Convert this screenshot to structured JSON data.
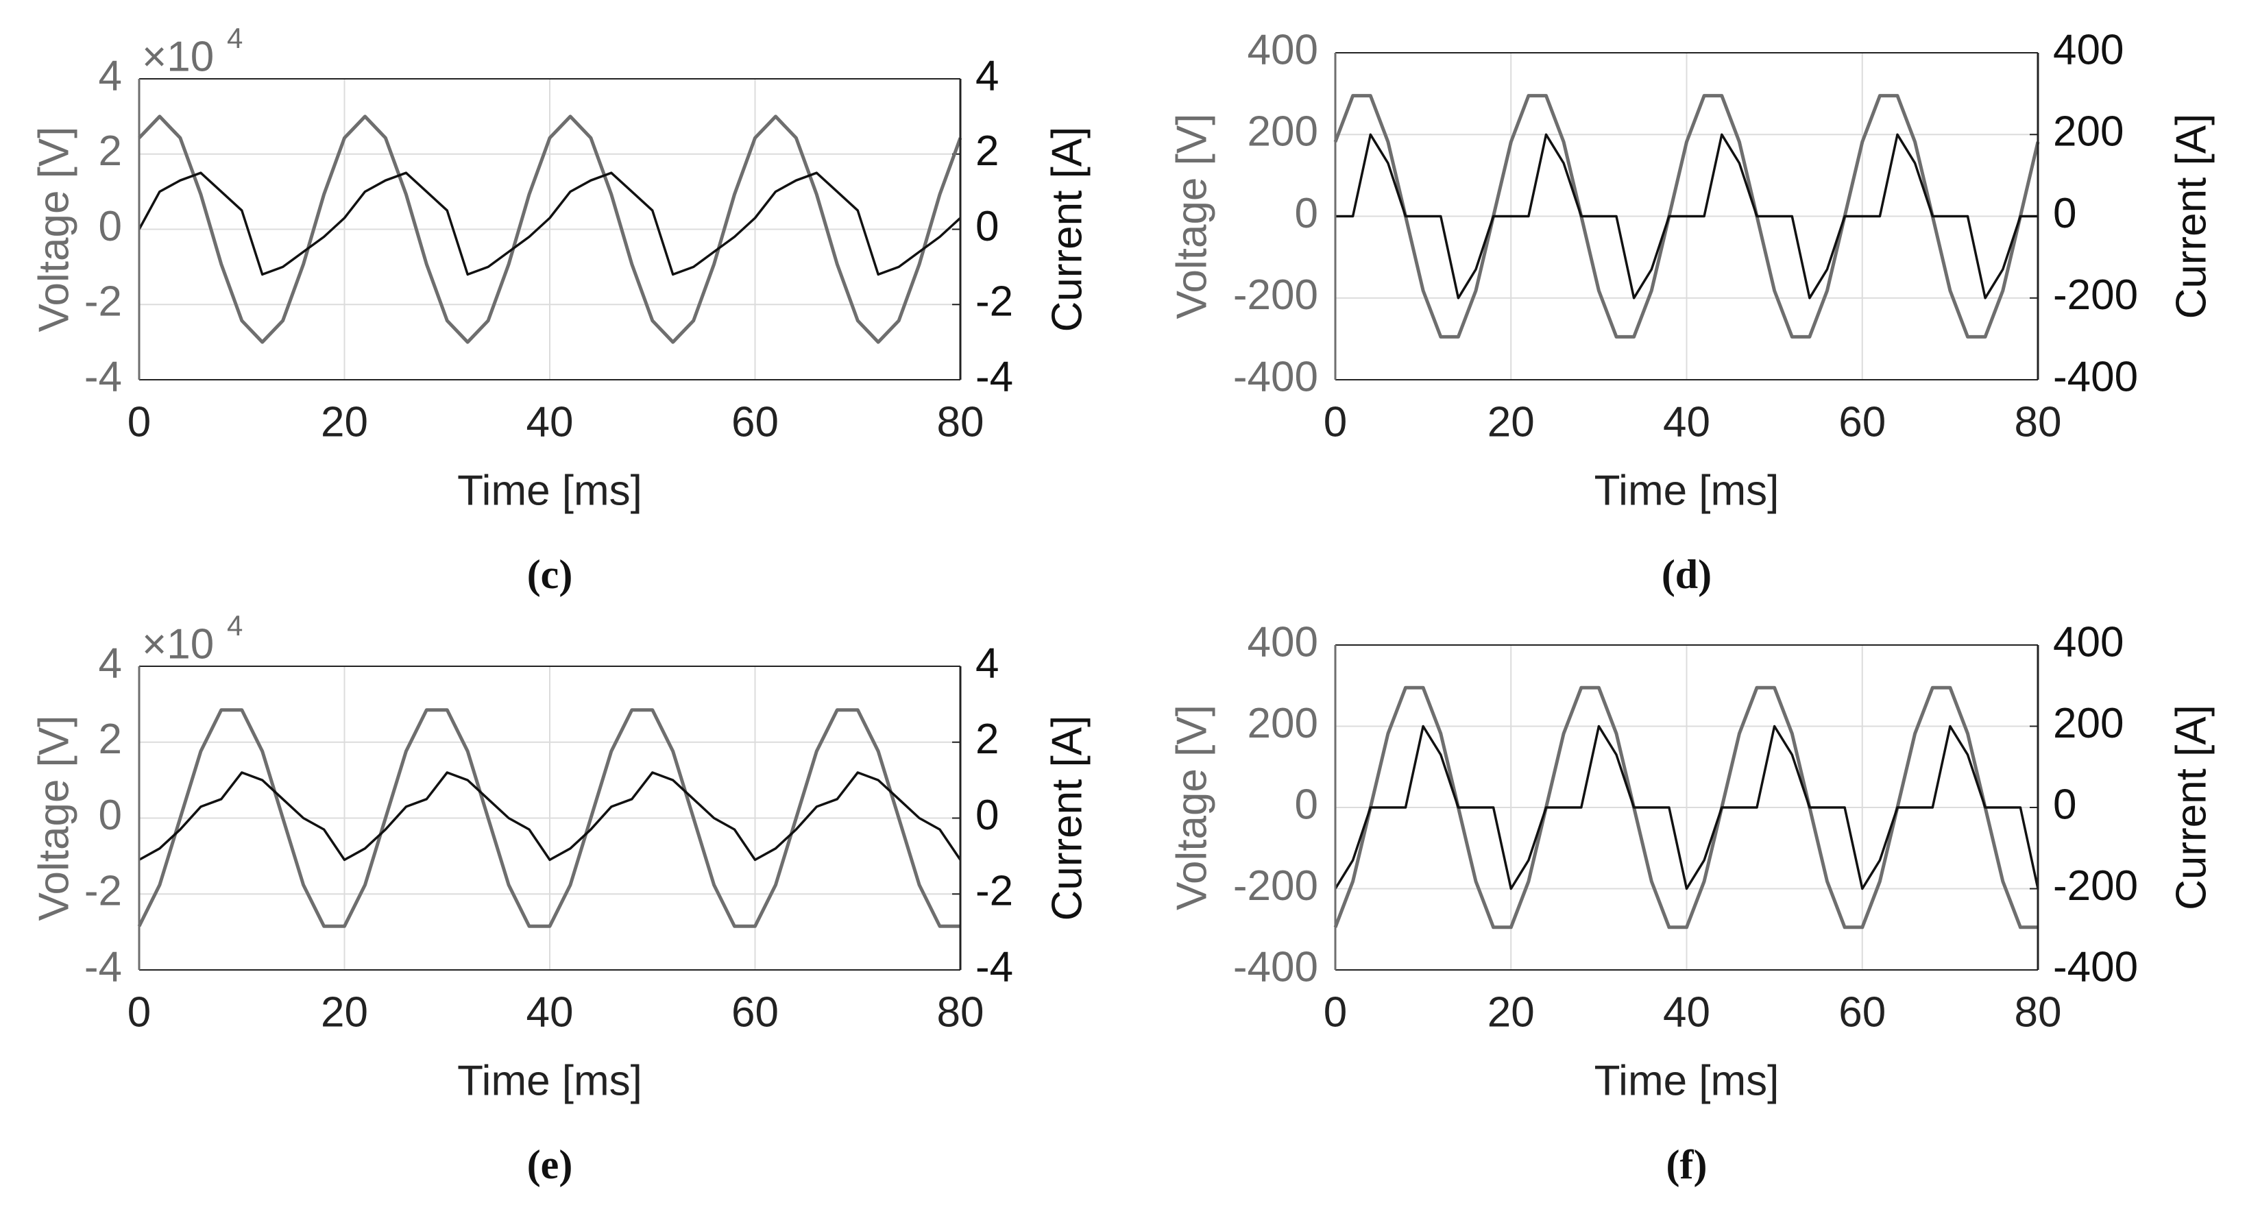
{
  "chart_data": [
    {
      "type": "line",
      "caption": "(c)",
      "xlabel": "Time [ms]",
      "ylabel": "Voltage [V]",
      "y2label": "Current [A]",
      "y_exponent": {
        "base": "×10",
        "power": "4"
      },
      "x": [
        0,
        2,
        4,
        6,
        8,
        10,
        12,
        14,
        16,
        18,
        20,
        22,
        24,
        26,
        28,
        30,
        32,
        34,
        36,
        38,
        40,
        42,
        44,
        46,
        48,
        50,
        52,
        54,
        56,
        58,
        60,
        62,
        64,
        66,
        68,
        70,
        72,
        74,
        76,
        78,
        80
      ],
      "xlim": [
        0,
        80
      ],
      "xticks": [
        0,
        20,
        40,
        60,
        80
      ],
      "ylim": [
        -4,
        4
      ],
      "yticks": [
        -4,
        -2,
        0,
        2,
        4
      ],
      "y2lim": [
        -4,
        4
      ],
      "y2ticks": [
        -4,
        -2,
        0,
        2,
        4
      ],
      "grid": true,
      "series": [
        {
          "color": "#6e6e6e",
          "values": [
            2.43,
            3,
            2.43,
            0.93,
            -0.93,
            -2.43,
            -3,
            -2.43,
            -0.93,
            0.93,
            2.43,
            3,
            2.43,
            0.93,
            -0.93,
            -2.43,
            -3,
            -2.43,
            -0.93,
            0.93,
            2.43,
            3,
            2.43,
            0.93,
            -0.93,
            -2.43,
            -3,
            -2.43,
            -0.93,
            0.93,
            2.43,
            3,
            2.43,
            0.93,
            -0.93,
            -2.43,
            -3,
            -2.43,
            -0.93,
            0.93,
            2.43
          ]
        },
        {
          "color": "#111111",
          "axis": "y2",
          "values": [
            0,
            1.0,
            1.3,
            1.5,
            1.0,
            0.5,
            -1.2,
            -1.0,
            -0.6,
            -0.2,
            0.3,
            1.0,
            1.3,
            1.5,
            1.0,
            0.5,
            -1.2,
            -1.0,
            -0.6,
            -0.2,
            0.3,
            1.0,
            1.3,
            1.5,
            1.0,
            0.5,
            -1.2,
            -1.0,
            -0.6,
            -0.2,
            0.3,
            1.0,
            1.3,
            1.5,
            1.0,
            0.5,
            -1.2,
            -1.0,
            -0.6,
            -0.2,
            0.3
          ]
        }
      ]
    },
    {
      "type": "line",
      "caption": "(d)",
      "xlabel": "Time [ms]",
      "ylabel": "Voltage [V]",
      "y2label": "Current [A]",
      "x": [
        0,
        2,
        4,
        6,
        8,
        10,
        12,
        14,
        16,
        18,
        20,
        22,
        24,
        26,
        28,
        30,
        32,
        34,
        36,
        38,
        40,
        42,
        44,
        46,
        48,
        50,
        52,
        54,
        56,
        58,
        60,
        62,
        64,
        66,
        68,
        70,
        72,
        74,
        76,
        78,
        80
      ],
      "xlim": [
        0,
        80
      ],
      "xticks": [
        0,
        20,
        40,
        60,
        80
      ],
      "ylim": [
        -400,
        400
      ],
      "yticks": [
        -400,
        -200,
        0,
        200,
        400
      ],
      "y2lim": [
        -400,
        400
      ],
      "y2ticks": [
        -400,
        -200,
        0,
        200,
        400
      ],
      "grid": true,
      "series": [
        {
          "color": "#6e6e6e",
          "values": [
            182,
            295,
            295,
            182,
            0,
            -182,
            -295,
            -295,
            -182,
            0,
            182,
            295,
            295,
            182,
            0,
            -182,
            -295,
            -295,
            -182,
            0,
            182,
            295,
            295,
            182,
            0,
            -182,
            -295,
            -295,
            -182,
            0,
            182,
            295,
            295,
            182,
            0,
            -182,
            -295,
            -295,
            -182,
            0,
            182
          ]
        },
        {
          "color": "#111111",
          "axis": "y2",
          "values": [
            0,
            0,
            200,
            130,
            0,
            0,
            0,
            -200,
            -130,
            0,
            0,
            0,
            200,
            130,
            0,
            0,
            0,
            -200,
            -130,
            0,
            0,
            0,
            200,
            130,
            0,
            0,
            0,
            -200,
            -130,
            0,
            0,
            0,
            200,
            130,
            0,
            0,
            0,
            -200,
            -130,
            0,
            0
          ]
        }
      ]
    },
    {
      "type": "line",
      "caption": "(e)",
      "xlabel": "Time [ms]",
      "ylabel": "Voltage [V]",
      "y2label": "Current [A]",
      "y_exponent": {
        "base": "×10",
        "power": "4"
      },
      "x": [
        0,
        2,
        4,
        6,
        8,
        10,
        12,
        14,
        16,
        18,
        20,
        22,
        24,
        26,
        28,
        30,
        32,
        34,
        36,
        38,
        40,
        42,
        44,
        46,
        48,
        50,
        52,
        54,
        56,
        58,
        60,
        62,
        64,
        66,
        68,
        70,
        72,
        74,
        76,
        78,
        80
      ],
      "xlim": [
        0,
        80
      ],
      "xticks": [
        0,
        20,
        40,
        60,
        80
      ],
      "ylim": [
        -4,
        4
      ],
      "yticks": [
        -4,
        -2,
        0,
        2,
        4
      ],
      "y2lim": [
        -4,
        4
      ],
      "y2ticks": [
        -4,
        -2,
        0,
        2,
        4
      ],
      "grid": true,
      "series": [
        {
          "color": "#6e6e6e",
          "values": [
            -2.85,
            -1.76,
            0,
            1.76,
            2.85,
            2.85,
            1.76,
            0,
            -1.76,
            -2.85,
            -2.85,
            -1.76,
            0,
            1.76,
            2.85,
            2.85,
            1.76,
            0,
            -1.76,
            -2.85,
            -2.85,
            -1.76,
            0,
            1.76,
            2.85,
            2.85,
            1.76,
            0,
            -1.76,
            -2.85,
            -2.85,
            -1.76,
            0,
            1.76,
            2.85,
            2.85,
            1.76,
            0,
            -1.76,
            -2.85,
            -2.85
          ]
        },
        {
          "color": "#111111",
          "axis": "y2",
          "values": [
            -1.1,
            -0.8,
            -0.3,
            0.3,
            0.5,
            1.2,
            1.0,
            0.5,
            0.0,
            -0.3,
            -1.1,
            -0.8,
            -0.3,
            0.3,
            0.5,
            1.2,
            1.0,
            0.5,
            0.0,
            -0.3,
            -1.1,
            -0.8,
            -0.3,
            0.3,
            0.5,
            1.2,
            1.0,
            0.5,
            0.0,
            -0.3,
            -1.1,
            -0.8,
            -0.3,
            0.3,
            0.5,
            1.2,
            1.0,
            0.5,
            0.0,
            -0.3,
            -1.1
          ]
        }
      ]
    },
    {
      "type": "line",
      "caption": "(f)",
      "xlabel": "Time [ms]",
      "ylabel": "Voltage [V]",
      "y2label": "Current [A]",
      "x": [
        0,
        2,
        4,
        6,
        8,
        10,
        12,
        14,
        16,
        18,
        20,
        22,
        24,
        26,
        28,
        30,
        32,
        34,
        36,
        38,
        40,
        42,
        44,
        46,
        48,
        50,
        52,
        54,
        56,
        58,
        60,
        62,
        64,
        66,
        68,
        70,
        72,
        74,
        76,
        78,
        80
      ],
      "xlim": [
        0,
        80
      ],
      "xticks": [
        0,
        20,
        40,
        60,
        80
      ],
      "ylim": [
        -400,
        400
      ],
      "yticks": [
        -400,
        -200,
        0,
        200,
        400
      ],
      "y2lim": [
        -400,
        400
      ],
      "y2ticks": [
        -400,
        -200,
        0,
        200,
        400
      ],
      "grid": true,
      "series": [
        {
          "color": "#6e6e6e",
          "values": [
            -295,
            -182,
            0,
            182,
            295,
            295,
            182,
            0,
            -182,
            -295,
            -295,
            -182,
            0,
            182,
            295,
            295,
            182,
            0,
            -182,
            -295,
            -295,
            -182,
            0,
            182,
            295,
            295,
            182,
            0,
            -182,
            -295,
            -295,
            -182,
            0,
            182,
            295,
            295,
            182,
            0,
            -182,
            -295,
            -295
          ]
        },
        {
          "color": "#111111",
          "axis": "y2",
          "values": [
            -200,
            -130,
            0,
            0,
            0,
            200,
            130,
            0,
            0,
            0,
            -200,
            -130,
            0,
            0,
            0,
            200,
            130,
            0,
            0,
            0,
            -200,
            -130,
            0,
            0,
            0,
            200,
            130,
            0,
            0,
            0,
            -200,
            -130,
            0,
            0,
            0,
            200,
            130,
            0,
            0,
            0,
            -200
          ]
        }
      ]
    }
  ]
}
